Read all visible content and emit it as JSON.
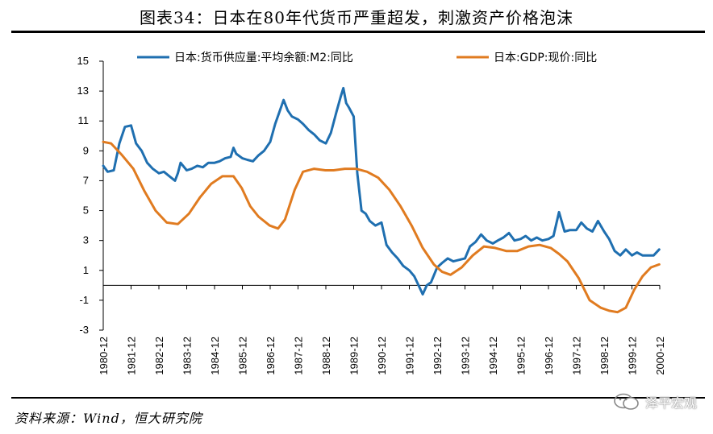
{
  "title": "图表34：日本在80年代货币严重超发，刺激资产价格泡沫",
  "source": "资料来源：Wind，恒大研究院",
  "watermark": "泽平宏观",
  "chart_data": {
    "type": "line",
    "title": "图表34：日本在80年代货币严重超发，刺激资产价格泡沫",
    "xlabel": "",
    "ylabel": "",
    "ylim": [
      -3,
      15
    ],
    "yticks": [
      15,
      13,
      11,
      9,
      7,
      5,
      3,
      1,
      -1,
      -3
    ],
    "x_tick_labels": [
      "1980-12",
      "1981-12",
      "1982-12",
      "1983-12",
      "1984-12",
      "1985-12",
      "1986-12",
      "1987-12",
      "1988-12",
      "1989-12",
      "1990-12",
      "1991-12",
      "1992-12",
      "1993-12",
      "1994-12",
      "1995-12",
      "1996-12",
      "1997-12",
      "1998-12",
      "1999-12",
      "2000-12"
    ],
    "legend_position": "top",
    "grid": false,
    "series": [
      {
        "name": "日本:货币供应量:平均余额:M2:同比",
        "color": "#1f6fb0",
        "x": [
          1980.92,
          1981.08,
          1981.3,
          1981.5,
          1981.7,
          1981.92,
          1982.1,
          1982.3,
          1982.5,
          1982.7,
          1982.92,
          1983.1,
          1983.3,
          1983.5,
          1983.6,
          1983.7,
          1983.92,
          1984.1,
          1984.3,
          1984.5,
          1984.7,
          1984.92,
          1985.1,
          1985.3,
          1985.5,
          1985.6,
          1985.7,
          1985.92,
          1986.1,
          1986.3,
          1986.5,
          1986.7,
          1986.92,
          1987.1,
          1987.25,
          1987.4,
          1987.55,
          1987.7,
          1987.92,
          1988.1,
          1988.3,
          1988.5,
          1988.7,
          1988.92,
          1989.1,
          1989.3,
          1989.45,
          1989.55,
          1989.65,
          1989.75,
          1989.92,
          1990.05,
          1990.2,
          1990.35,
          1990.5,
          1990.7,
          1990.92,
          1991.1,
          1991.3,
          1991.5,
          1991.7,
          1991.92,
          1992.1,
          1992.25,
          1992.4,
          1992.55,
          1992.7,
          1992.92,
          1993.1,
          1993.3,
          1993.5,
          1993.7,
          1993.92,
          1994.1,
          1994.3,
          1994.5,
          1994.7,
          1994.92,
          1995.1,
          1995.3,
          1995.5,
          1995.7,
          1995.92,
          1996.1,
          1996.3,
          1996.5,
          1996.7,
          1996.92,
          1997.1,
          1997.3,
          1997.5,
          1997.7,
          1997.92,
          1998.1,
          1998.3,
          1998.5,
          1998.7,
          1998.92,
          1999.1,
          1999.3,
          1999.5,
          1999.7,
          1999.92,
          2000.1,
          2000.3,
          2000.5,
          2000.7,
          2000.9
        ],
        "values": [
          8.0,
          7.6,
          7.7,
          9.5,
          10.6,
          10.7,
          9.5,
          9.0,
          8.2,
          7.8,
          7.5,
          7.6,
          7.3,
          7.0,
          7.5,
          8.2,
          7.7,
          7.8,
          8.0,
          7.9,
          8.2,
          8.2,
          8.3,
          8.5,
          8.6,
          9.2,
          8.8,
          8.5,
          8.4,
          8.3,
          8.7,
          9.0,
          9.6,
          10.8,
          11.6,
          12.4,
          11.7,
          11.3,
          11.1,
          10.8,
          10.4,
          10.1,
          9.7,
          9.5,
          10.2,
          11.6,
          12.6,
          13.2,
          12.2,
          11.9,
          11.3,
          7.5,
          5.0,
          4.8,
          4.3,
          4.0,
          4.2,
          2.7,
          2.2,
          1.8,
          1.3,
          1.0,
          0.6,
          0.0,
          -0.6,
          0.0,
          0.2,
          1.2,
          1.5,
          1.8,
          1.6,
          1.7,
          1.8,
          2.6,
          2.9,
          3.4,
          3.0,
          2.8,
          3.0,
          3.2,
          3.5,
          3.0,
          3.1,
          3.3,
          3.0,
          3.2,
          3.0,
          3.1,
          3.3,
          4.9,
          3.6,
          3.7,
          3.7,
          4.2,
          3.8,
          3.6,
          4.3,
          3.6,
          3.1,
          2.3,
          2.0,
          2.4,
          2.0,
          2.2,
          2.0,
          2.0,
          2.0,
          2.4
        ]
      },
      {
        "name": "日本:GDP:现价:同比",
        "color": "#e07b20",
        "x": [
          1980.92,
          1981.2,
          1981.6,
          1982.0,
          1982.4,
          1982.8,
          1983.2,
          1983.6,
          1984.0,
          1984.4,
          1984.8,
          1985.2,
          1985.6,
          1985.9,
          1986.2,
          1986.5,
          1986.9,
          1987.2,
          1987.45,
          1987.8,
          1988.1,
          1988.5,
          1988.9,
          1989.2,
          1989.6,
          1990.0,
          1990.4,
          1990.8,
          1991.2,
          1991.6,
          1992.0,
          1992.4,
          1992.8,
          1993.1,
          1993.4,
          1993.8,
          1994.2,
          1994.6,
          1995.0,
          1995.4,
          1995.8,
          1996.2,
          1996.6,
          1997.0,
          1997.3,
          1997.6,
          1998.0,
          1998.4,
          1998.8,
          1999.1,
          1999.4,
          1999.7,
          2000.0,
          2000.3,
          2000.6,
          2000.9
        ],
        "values": [
          9.6,
          9.5,
          8.7,
          7.8,
          6.3,
          5.0,
          4.2,
          4.1,
          4.8,
          5.9,
          6.8,
          7.3,
          7.3,
          6.5,
          5.3,
          4.6,
          4.0,
          3.8,
          4.4,
          6.4,
          7.6,
          7.8,
          7.7,
          7.7,
          7.8,
          7.8,
          7.6,
          7.2,
          6.4,
          5.3,
          4.0,
          2.5,
          1.4,
          0.9,
          0.7,
          1.2,
          2.0,
          2.6,
          2.5,
          2.3,
          2.3,
          2.6,
          2.7,
          2.5,
          2.1,
          1.6,
          0.5,
          -1.0,
          -1.5,
          -1.7,
          -1.8,
          -1.5,
          -0.3,
          0.6,
          1.2,
          1.4
        ]
      }
    ]
  }
}
